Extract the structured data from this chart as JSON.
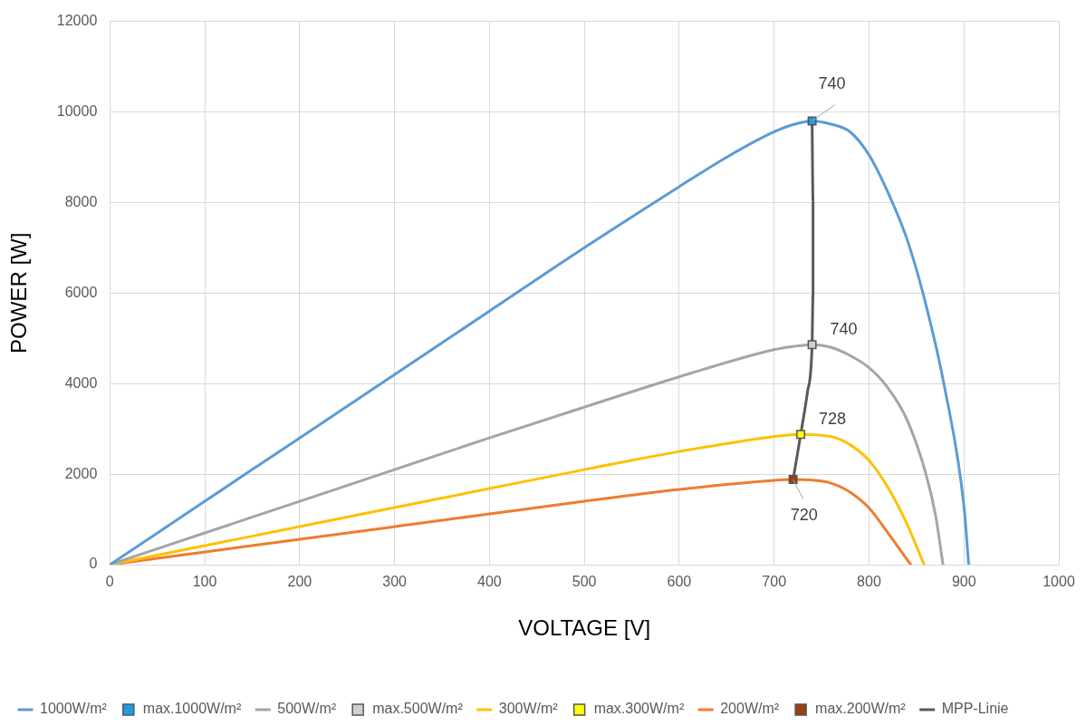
{
  "chart_data": {
    "type": "line",
    "xlabel": "VOLTAGE [V]",
    "ylabel": "POWER [W]",
    "xlim": [
      0,
      1000
    ],
    "xticks": [
      0,
      100,
      200,
      300,
      400,
      500,
      600,
      700,
      800,
      900,
      1000
    ],
    "ylim": [
      0,
      12000
    ],
    "yticks": [
      0,
      2000,
      4000,
      6000,
      8000,
      10000,
      12000
    ],
    "grid": true,
    "legend": "bottom",
    "series": [
      {
        "name": "1000W/m²",
        "type": "line",
        "marker": "none",
        "color": "#5b9bd5",
        "x": [
          0,
          100,
          200,
          300,
          400,
          500,
          600,
          650,
          700,
          720,
          740,
          760,
          780,
          800,
          820,
          840,
          860,
          880,
          900,
          905
        ],
        "values": [
          0,
          1400,
          2800,
          4200,
          5600,
          7000,
          8350,
          9000,
          9560,
          9720,
          9800,
          9730,
          9560,
          9050,
          8220,
          7190,
          5740,
          3880,
          1300,
          0
        ]
      },
      {
        "name": "max.1000W/m²",
        "type": "scatter",
        "marker": "square",
        "color": "#1f9be6",
        "x": [
          740
        ],
        "values": [
          9800
        ]
      },
      {
        "name": "500W/m²",
        "type": "line",
        "marker": "none",
        "color": "#a5a5a5",
        "x": [
          0,
          100,
          200,
          300,
          400,
          500,
          600,
          700,
          720,
          740,
          760,
          780,
          800,
          820,
          840,
          860,
          870,
          878
        ],
        "values": [
          0,
          700,
          1400,
          2100,
          2800,
          3480,
          4150,
          4750,
          4820,
          4860,
          4800,
          4620,
          4350,
          3900,
          3200,
          2000,
          1100,
          0
        ]
      },
      {
        "name": "max.500W/m²",
        "type": "scatter",
        "marker": "square",
        "color": "#d0d0d0",
        "x": [
          740
        ],
        "values": [
          4860
        ]
      },
      {
        "name": "300W/m²",
        "type": "line",
        "marker": "none",
        "color": "#ffc000",
        "x": [
          0,
          100,
          200,
          300,
          400,
          500,
          600,
          700,
          728,
          760,
          780,
          800,
          820,
          840,
          858
        ],
        "values": [
          0,
          420,
          840,
          1260,
          1680,
          2100,
          2500,
          2830,
          2880,
          2830,
          2650,
          2300,
          1700,
          900,
          0
        ]
      },
      {
        "name": "max.300W/m²",
        "type": "scatter",
        "marker": "square",
        "color": "#ffff00",
        "x": [
          728
        ],
        "values": [
          2880
        ]
      },
      {
        "name": "200W/m²",
        "type": "line",
        "marker": "none",
        "color": "#ed7d31",
        "x": [
          0,
          100,
          200,
          300,
          400,
          500,
          600,
          700,
          720,
          760,
          780,
          800,
          820,
          844
        ],
        "values": [
          0,
          280,
          560,
          840,
          1120,
          1400,
          1660,
          1860,
          1880,
          1800,
          1600,
          1250,
          700,
          0
        ]
      },
      {
        "name": "max.200W/m²",
        "type": "scatter",
        "marker": "square",
        "color": "#9c3f0f",
        "x": [
          720
        ],
        "values": [
          1880
        ]
      },
      {
        "name": "MPP-Linie",
        "type": "line",
        "marker": "none",
        "color": "#595959",
        "x": [
          720,
          728,
          735,
          740,
          741,
          741,
          740
        ],
        "values": [
          1880,
          2880,
          3800,
          4860,
          6000,
          8000,
          9800
        ]
      }
    ],
    "annotations": [
      {
        "text": "740",
        "x": 740,
        "y": 9800
      },
      {
        "text": "740",
        "x": 740,
        "y": 4860
      },
      {
        "text": "728",
        "x": 728,
        "y": 2880
      },
      {
        "text": "720",
        "x": 720,
        "y": 1880
      }
    ]
  }
}
